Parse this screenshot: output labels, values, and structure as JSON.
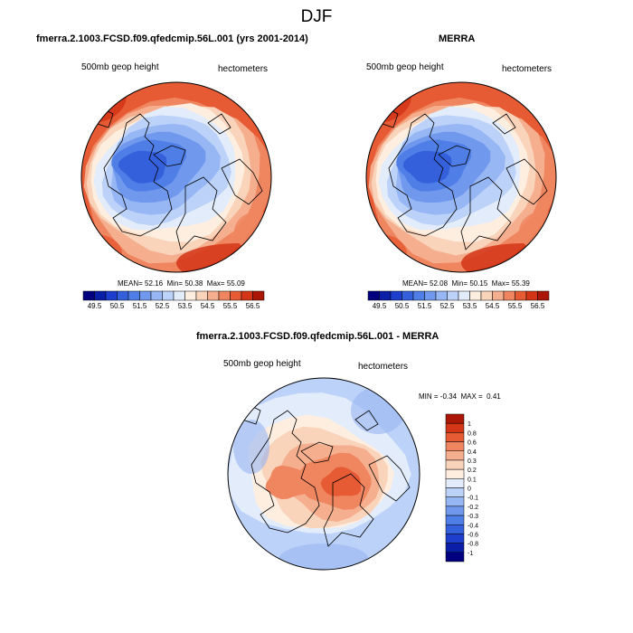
{
  "title": "DJF",
  "panels": [
    {
      "id": "model",
      "title": "fmerra.2.1003.FCSD.f09.qfedcmip.56L.001 (yrs 2001-2014)",
      "left_label": "500mb geop height",
      "right_label": "hectometers",
      "stats": {
        "mean_label": "MEAN=",
        "mean": "52.16",
        "min_label": "Min=",
        "min": "50.38",
        "max_label": "Max=",
        "max": "55.09"
      }
    },
    {
      "id": "obs",
      "title": "MERRA",
      "left_label": "500mb geop height",
      "right_label": "hectometers",
      "stats": {
        "mean_label": "MEAN=",
        "mean": "52.08",
        "min_label": "Min=",
        "min": "50.15",
        "max_label": "Max=",
        "max": "55.39"
      }
    },
    {
      "id": "diff",
      "title": "fmerra.2.1003.FCSD.f09.qfedcmip.56L.001 - MERRA",
      "left_label": "500mb geop height",
      "right_label": "hectometers",
      "stats": {
        "min_label": "MIN =",
        "min": "-0.34",
        "max_label": "MAX =",
        "max": "0.41"
      }
    }
  ],
  "chart_data": [
    {
      "type": "heatmap",
      "projection": "north polar stereographic",
      "title": "fmerra.2.1003.FCSD.f09.qfedcmip.56L.001 (yrs 2001-2014)",
      "variable": "500mb geop height",
      "units": "hectometers",
      "contour_levels": [
        49.5,
        50,
        50.5,
        51,
        51.5,
        52,
        52.5,
        53,
        53.5,
        54,
        54.5,
        55,
        55.5,
        56,
        56.5
      ],
      "colorbar_tick_labels": [
        "49.5",
        "50.5",
        "51.5",
        "52.5",
        "53.5",
        "54.5",
        "55.5",
        "56.5"
      ],
      "mean": 52.16,
      "min": 50.38,
      "max": 55.09
    },
    {
      "type": "heatmap",
      "projection": "north polar stereographic",
      "title": "MERRA",
      "variable": "500mb geop height",
      "units": "hectometers",
      "contour_levels": [
        49.5,
        50,
        50.5,
        51,
        51.5,
        52,
        52.5,
        53,
        53.5,
        54,
        54.5,
        55,
        55.5,
        56,
        56.5
      ],
      "colorbar_tick_labels": [
        "49.5",
        "50.5",
        "51.5",
        "52.5",
        "53.5",
        "54.5",
        "55.5",
        "56.5"
      ],
      "mean": 52.08,
      "min": 50.15,
      "max": 55.39
    },
    {
      "type": "heatmap",
      "projection": "north polar stereographic",
      "title": "fmerra.2.1003.FCSD.f09.qfedcmip.56L.001 - MERRA",
      "variable": "500mb geop height",
      "units": "hectometers",
      "contour_levels": [
        -1,
        -0.8,
        -0.6,
        -0.4,
        -0.3,
        -0.2,
        -0.1,
        0,
        0.1,
        0.2,
        0.3,
        0.4,
        0.6,
        0.8,
        1
      ],
      "colorbar_tick_labels": [
        "1",
        "0.8",
        "0.6",
        "0.4",
        "0.3",
        "0.2",
        "0.1",
        "0",
        "-0.1",
        "-0.2",
        "-0.3",
        "-0.4",
        "-0.6",
        "-0.8",
        "-1"
      ],
      "min": -0.34,
      "max": 0.41
    }
  ],
  "palette": [
    "#00007f",
    "#0a1ea8",
    "#1e3fcd",
    "#3460dc",
    "#4f7fe6",
    "#7099ee",
    "#97b6f4",
    "#bdd2f8",
    "#e2ecfb",
    "#fdeee0",
    "#f9d3ba",
    "#f5ae8e",
    "#ef8660",
    "#e65b34",
    "#d43517",
    "#aa1707",
    "#7f0000"
  ]
}
